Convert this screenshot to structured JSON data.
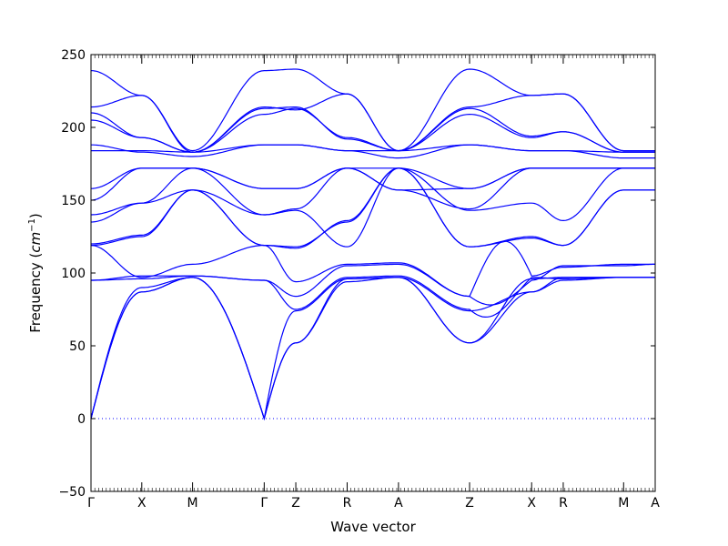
{
  "chart_data": {
    "type": "line",
    "xlabel": "Wave vector",
    "ylabel_text": "Frequency (",
    "ylabel_unit_base": "cm",
    "ylabel_unit_exp": "−1",
    "ylabel_close": ")",
    "ylim": [
      -50,
      250
    ],
    "yticks": [
      "−50",
      "0",
      "50",
      "100",
      "150",
      "200",
      "250"
    ],
    "ytick_values": [
      -50,
      0,
      50,
      100,
      150,
      200,
      250
    ],
    "x_points": [
      {
        "label": "Γ",
        "x": 0
      },
      {
        "label": "X",
        "x": 0.09
      },
      {
        "label": "M",
        "x": 0.18
      },
      {
        "label": "Γ",
        "x": 0.307
      },
      {
        "label": "Z",
        "x": 0.363
      },
      {
        "label": "R",
        "x": 0.454
      },
      {
        "label": "A",
        "x": 0.545
      },
      {
        "label": "Z",
        "x": 0.671
      },
      {
        "label": "X",
        "x": 0.781
      },
      {
        "label": "R",
        "x": 0.837
      },
      {
        "label": "M",
        "x": 0.944
      },
      {
        "label": "A",
        "x": 1.0
      }
    ],
    "xlim": [
      0,
      1
    ],
    "zero_line": {
      "value": 0,
      "style": "dotted"
    },
    "line_color": "#0000ff",
    "branch_count": 24
  }
}
